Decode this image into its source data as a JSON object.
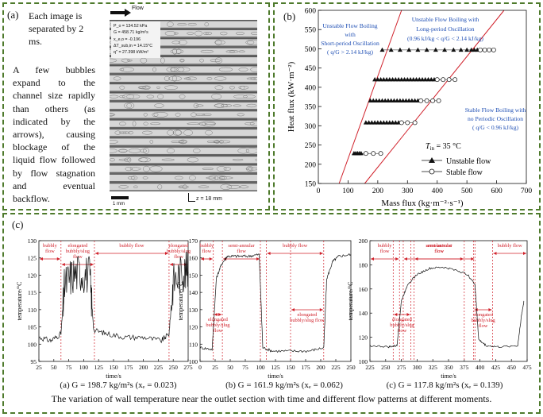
{
  "panel_a": {
    "label": "(a)",
    "interval_text": "Each image is separated by 2 ms.",
    "description": "A few bubbles expand to the channel size rapidly than others (as indicated by the arrows), causing blockage of the liquid flow followed by flow stagnation and eventual backflow.",
    "flow_label": "Flow",
    "conditions": [
      "P_o = 134.52 kPa",
      "G = 458.71 kg/m²s",
      "x_e,o = -0.196",
      "ΔT_sub,in = 14.15°C",
      "q'' = 27.398 kW/m²"
    ],
    "scale_label": "1 mm",
    "z_label": "z = 18 mm"
  },
  "panel_b": {
    "label": "(b)",
    "region_short": [
      "Unstable Flow Boiling",
      "with",
      "Short-period Oscillation",
      "( q/G > 2.14 kJ/kg)"
    ],
    "region_long": [
      "Unstable Flow Boiling with",
      "Long-period Oscillation",
      "(0.96 kJ/kg < q/G < 2.14 kJ/kg)"
    ],
    "region_stable": [
      "Stable Flow Boiling with",
      "no Periodic Oscillation",
      "( q/G < 0.96 kJ/kg)"
    ],
    "tin_label": "T",
    "tin_sub": "in",
    "tin_value": " = 35 °C",
    "legend_unstable": "Unstable flow",
    "legend_stable": "Stable flow",
    "region_text_color": "#1f4fb4",
    "boundary_color": "#d0202a"
  },
  "panel_c": {
    "label": "(c)",
    "caption_a": "(a) G = 198.7 kg/m²s (xₑ = 0.023)",
    "caption_b": "(b) G = 161.9 kg/m²s (xₑ = 0.062)",
    "caption_c": "(c) G = 117.8 kg/m²s (xₑ = 0.139)",
    "main_caption": "The variation of wall temperature near the outlet section with time and different flow patterns at different moments."
  },
  "chart_data": [
    {
      "type": "scatter",
      "xlabel": "Mass flux (kg·m⁻²·s⁻¹)",
      "ylabel": "Heat flux (kW·m⁻²)",
      "xlim": [
        0,
        700
      ],
      "ylim": [
        150,
        600
      ],
      "xticks": [
        0,
        100,
        200,
        300,
        400,
        500,
        600,
        700
      ],
      "yticks": [
        150,
        200,
        250,
        300,
        350,
        400,
        450,
        500,
        550,
        600
      ],
      "lines": [
        {
          "slope_kj_per_kg": 2.14,
          "points": [
            [
              70,
              150
            ],
            [
              280,
              600
            ]
          ]
        },
        {
          "slope_kj_per_kg": 0.96,
          "points": [
            [
              156,
              150
            ],
            [
              625,
              600
            ]
          ]
        }
      ],
      "series": [
        {
          "name": "Unstable flow",
          "marker": "filled-triangle",
          "points": [
            [
              120,
              228
            ],
            [
              126,
              228
            ],
            [
              132,
              228
            ],
            [
              138,
              228
            ],
            [
              144,
              228
            ],
            [
              160,
              308
            ],
            [
              170,
              308
            ],
            [
              180,
              308
            ],
            [
              190,
              308
            ],
            [
              200,
              308
            ],
            [
              210,
              308
            ],
            [
              220,
              308
            ],
            [
              230,
              308
            ],
            [
              240,
              308
            ],
            [
              250,
              308
            ],
            [
              260,
              308
            ],
            [
              270,
              308
            ],
            [
              175,
              365
            ],
            [
              185,
              365
            ],
            [
              195,
              365
            ],
            [
              205,
              365
            ],
            [
              215,
              365
            ],
            [
              225,
              365
            ],
            [
              235,
              365
            ],
            [
              245,
              365
            ],
            [
              255,
              365
            ],
            [
              265,
              365
            ],
            [
              275,
              365
            ],
            [
              285,
              365
            ],
            [
              295,
              365
            ],
            [
              305,
              365
            ],
            [
              315,
              365
            ],
            [
              325,
              365
            ],
            [
              335,
              365
            ],
            [
              190,
              420
            ],
            [
              200,
              420
            ],
            [
              210,
              420
            ],
            [
              220,
              420
            ],
            [
              230,
              420
            ],
            [
              240,
              420
            ],
            [
              250,
              420
            ],
            [
              260,
              420
            ],
            [
              270,
              420
            ],
            [
              280,
              420
            ],
            [
              290,
              420
            ],
            [
              300,
              420
            ],
            [
              310,
              420
            ],
            [
              320,
              420
            ],
            [
              330,
              420
            ],
            [
              340,
              420
            ],
            [
              350,
              420
            ],
            [
              360,
              420
            ],
            [
              370,
              420
            ],
            [
              380,
              420
            ],
            [
              390,
              420
            ],
            [
              215,
              497
            ],
            [
              245,
              497
            ],
            [
              275,
              497
            ],
            [
              305,
              497
            ],
            [
              335,
              497
            ],
            [
              365,
              497
            ],
            [
              395,
              497
            ],
            [
              425,
              497
            ],
            [
              455,
              497
            ],
            [
              480,
              497
            ],
            [
              500,
              497
            ],
            [
              515,
              497
            ],
            [
              525,
              497
            ],
            [
              535,
              497
            ]
          ]
        },
        {
          "name": "Stable flow",
          "marker": "open-circle",
          "points": [
            [
              160,
              228
            ],
            [
              185,
              228
            ],
            [
              210,
              228
            ],
            [
              280,
              308
            ],
            [
              300,
              308
            ],
            [
              325,
              308
            ],
            [
              345,
              365
            ],
            [
              365,
              365
            ],
            [
              385,
              365
            ],
            [
              405,
              365
            ],
            [
              400,
              420
            ],
            [
              420,
              420
            ],
            [
              440,
              420
            ],
            [
              460,
              420
            ],
            [
              545,
              497
            ],
            [
              560,
              497
            ],
            [
              575,
              497
            ],
            [
              590,
              497
            ]
          ]
        }
      ]
    },
    {
      "type": "line",
      "caption": "(a) G = 198.7 kg/m²s (xₑ = 0.023)",
      "xlabel": "time/s",
      "ylabel": "temperature/°C",
      "xlim": [
        25,
        275
      ],
      "ylim": [
        95,
        130
      ],
      "xticks": [
        25,
        50,
        75,
        100,
        125,
        150,
        175,
        200,
        225,
        250,
        275
      ],
      "yticks": [
        95,
        100,
        105,
        110,
        115,
        120,
        125,
        130
      ],
      "regions": [
        {
          "label": [
            "bubbly",
            "flow"
          ],
          "from": 25,
          "to": 62
        },
        {
          "label": [
            "elongated",
            "bubbly/slug",
            "flow"
          ],
          "from": 62,
          "to": 118
        },
        {
          "label": [
            "bubbly flow"
          ],
          "from": 118,
          "to": 243
        },
        {
          "label": [
            "elongated",
            "bubbly/slug",
            "flow"
          ],
          "from": 243,
          "to": 275
        }
      ],
      "series": [
        {
          "points": [
            [
              25,
              102
            ],
            [
              45,
              101
            ],
            [
              62,
              103
            ],
            [
              68,
              117
            ],
            [
              80,
              120
            ],
            [
              95,
              121
            ],
            [
              110,
              120
            ],
            [
              117,
              104
            ],
            [
              140,
              103
            ],
            [
              170,
              102
            ],
            [
              200,
              102
            ],
            [
              230,
              101
            ],
            [
              243,
              103
            ],
            [
              250,
              118
            ],
            [
              265,
              121
            ],
            [
              275,
              121
            ]
          ]
        }
      ]
    },
    {
      "type": "line",
      "caption": "(b) G = 161.9 kg/m²s (xₑ = 0.062)",
      "xlabel": "time/s",
      "ylabel": "temperature/°C",
      "xlim": [
        0,
        250
      ],
      "ylim": [
        100,
        170
      ],
      "xticks": [
        0,
        25,
        50,
        75,
        100,
        125,
        150,
        175,
        200,
        225,
        250
      ],
      "yticks": [
        100,
        110,
        120,
        130,
        140,
        150,
        160,
        170
      ],
      "regions": [
        {
          "label": [
            "bubbly",
            "flow"
          ],
          "from": 0,
          "to": 22
        },
        {
          "label": [
            "semi-annular",
            "flow"
          ],
          "from": 37,
          "to": 100
        },
        {
          "label": [
            "bubbly flow"
          ],
          "from": 110,
          "to": 205
        },
        {
          "label": [
            "elongated",
            "bubbly/slug",
            "flow"
          ],
          "from": 22,
          "to": 37
        },
        {
          "label": [
            "elongated",
            "bubbly/slug flow"
          ],
          "from": 150,
          "to": 205
        }
      ],
      "series": [
        {
          "points": [
            [
              0,
              108
            ],
            [
              20,
              107
            ],
            [
              27,
              148
            ],
            [
              35,
              156
            ],
            [
              45,
              161
            ],
            [
              60,
              161
            ],
            [
              80,
              161
            ],
            [
              98,
              162
            ],
            [
              104,
              108
            ],
            [
              120,
              106
            ],
            [
              150,
              106
            ],
            [
              180,
              106
            ],
            [
              205,
              108
            ],
            [
              210,
              148
            ],
            [
              220,
              158
            ],
            [
              230,
              161
            ],
            [
              250,
              162
            ]
          ]
        }
      ]
    },
    {
      "type": "line",
      "caption": "(c) G = 117.8 kg/m²s (xₑ = 0.139)",
      "xlabel": "time/s",
      "ylabel": "temperature/°C",
      "xlim": [
        225,
        475
      ],
      "ylim": [
        100,
        200
      ],
      "xticks": [
        225,
        250,
        275,
        300,
        325,
        350,
        375,
        400,
        425,
        450,
        475
      ],
      "yticks": [
        100,
        120,
        140,
        160,
        180,
        200
      ],
      "regions": [
        {
          "label": [
            "bubbly",
            "flow"
          ],
          "from": 225,
          "to": 272
        },
        {
          "label": [
            "annular/mist",
            "flow"
          ],
          "from": 295,
          "to": 375
        },
        {
          "label": [
            "semi-annular",
            "flow"
          ],
          "from": 278,
          "to": 392
        },
        {
          "label": [
            "elongated",
            "bubbly/slug",
            "flow"
          ],
          "from": 262,
          "to": 290
        },
        {
          "label": [
            "elongated",
            "bubbly/slug",
            "flow"
          ],
          "from": 390,
          "to": 420
        },
        {
          "label": [
            "bubbly flow"
          ],
          "from": 420,
          "to": 475
        }
      ],
      "series": [
        {
          "points": [
            [
              225,
              113
            ],
            [
              255,
              112
            ],
            [
              268,
              113
            ],
            [
              275,
              150
            ],
            [
              285,
              164
            ],
            [
              300,
              172
            ],
            [
              320,
              177
            ],
            [
              340,
              178
            ],
            [
              360,
              176
            ],
            [
              380,
              172
            ],
            [
              392,
              164
            ],
            [
              398,
              118
            ],
            [
              410,
              113
            ],
            [
              430,
              112
            ],
            [
              460,
              113
            ],
            [
              466,
              138
            ],
            [
              470,
              150
            ]
          ]
        }
      ]
    }
  ]
}
